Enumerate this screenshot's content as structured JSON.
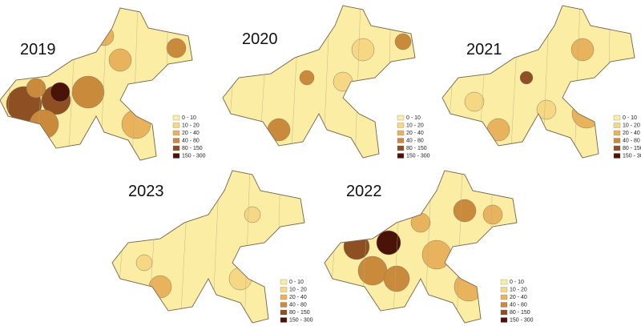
{
  "maps": [
    {
      "year": "2019"
    },
    {
      "year": "2020"
    },
    {
      "year": "2021"
    },
    {
      "year": "2023"
    },
    {
      "year": "2022"
    }
  ],
  "legend": [
    {
      "label": "0 - 10",
      "color": "#fbeea4"
    },
    {
      "label": "10 - 20",
      "color": "#f5d784"
    },
    {
      "label": "20 - 40",
      "color": "#e8b35c"
    },
    {
      "label": "40 - 80",
      "color": "#c98a3c"
    },
    {
      "label": "80 - 150",
      "color": "#8e4f22"
    },
    {
      "label": "150 - 300",
      "color": "#4a1308"
    }
  ]
}
